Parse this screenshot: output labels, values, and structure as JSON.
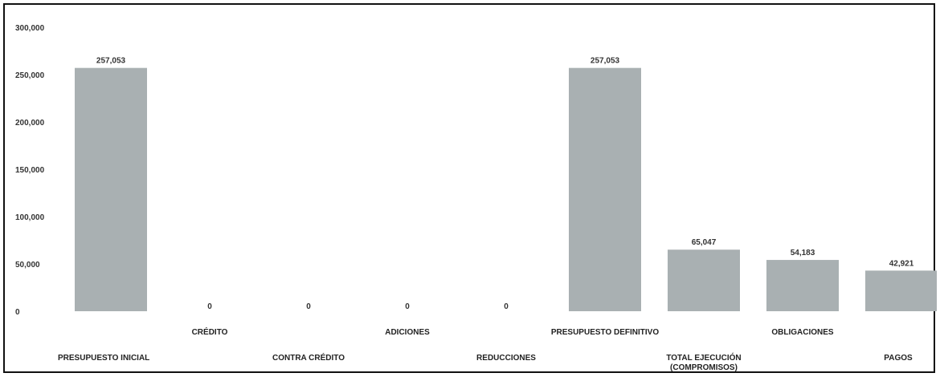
{
  "chart_data": {
    "type": "bar",
    "title": "",
    "xlabel": "",
    "ylabel": "",
    "ylim": [
      0,
      300000
    ],
    "y_ticks": [
      {
        "value": 0,
        "label": "0"
      },
      {
        "value": 50000,
        "label": "50,000"
      },
      {
        "value": 100000,
        "label": "100,000"
      },
      {
        "value": 150000,
        "label": "150,000"
      },
      {
        "value": 200000,
        "label": "200,000"
      },
      {
        "value": 250000,
        "label": "250,000"
      },
      {
        "value": 300000,
        "label": "300,000"
      }
    ],
    "categories": [
      [
        "PRESUPUESTO INICIAL"
      ],
      [
        "CRÉDITO"
      ],
      [
        "CONTRA CRÉDITO"
      ],
      [
        "ADICIONES"
      ],
      [
        "REDUCCIONES"
      ],
      [
        "PRESUPUESTO DEFINITIVO"
      ],
      [
        "TOTAL EJECUCIÓN",
        "(COMPROMISOS)"
      ],
      [
        "OBLIGACIONES"
      ],
      [
        "PAGOS"
      ]
    ],
    "values": [
      257053,
      0,
      0,
      0,
      0,
      257053,
      65047,
      54183,
      42921
    ],
    "value_labels": [
      "257,053",
      "0",
      "0",
      "0",
      "0",
      "257,053",
      "65,047",
      "54,183",
      "42,921"
    ],
    "bar_color": "#a9b0b2",
    "grid": false,
    "legend": "none"
  }
}
